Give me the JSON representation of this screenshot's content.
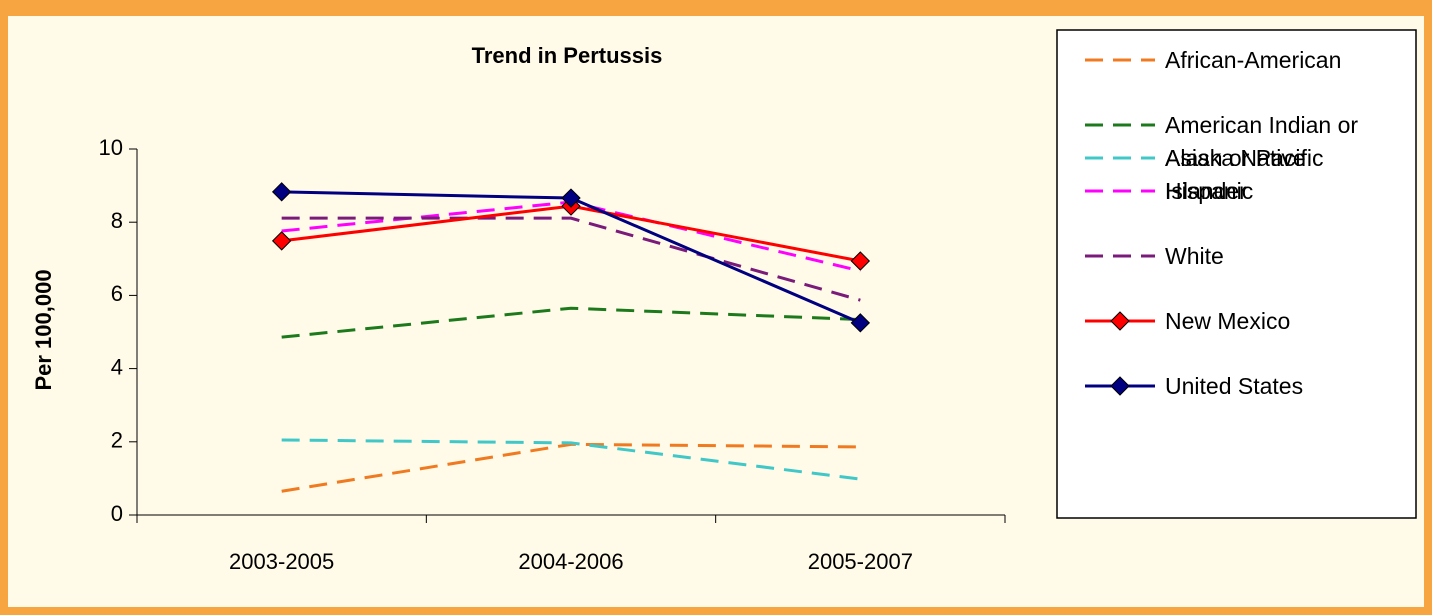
{
  "chart_data": {
    "type": "line",
    "title": "Trend in Pertussis",
    "y_label": "Per 100,000",
    "categories": [
      "2003-2005",
      "2004-2006",
      "2005-2007"
    ],
    "ylim": [
      0,
      10
    ],
    "yticks": [
      0,
      2,
      4,
      6,
      8,
      10
    ],
    "series": [
      {
        "name": "African-American",
        "color": "#f07a20",
        "line_style": "dashed",
        "values": [
          0.65,
          1.93,
          1.86
        ]
      },
      {
        "name": "American Indian or Alaska Native",
        "color": "#1c7a1c",
        "line_style": "dashed",
        "values": [
          4.86,
          5.65,
          5.34
        ]
      },
      {
        "name": "Asian or Pacific Islander",
        "color": "#40c8c8",
        "line_style": "dashed",
        "values": [
          2.05,
          1.97,
          0.98
        ]
      },
      {
        "name": "Hispanic",
        "color": "#ff00ff",
        "line_style": "dashed",
        "values": [
          7.76,
          8.55,
          6.67
        ]
      },
      {
        "name": "White",
        "color": "#7a1a7a",
        "line_style": "dashed",
        "values": [
          8.11,
          8.11,
          5.87
        ]
      },
      {
        "name": "New Mexico",
        "color": "#ff0000",
        "line_style": "solid",
        "marker": "diamond",
        "values": [
          7.49,
          8.44,
          6.94
        ]
      },
      {
        "name": "United States",
        "color": "#000080",
        "line_style": "solid",
        "marker": "diamond",
        "values": [
          8.83,
          8.66,
          5.25
        ]
      }
    ]
  }
}
